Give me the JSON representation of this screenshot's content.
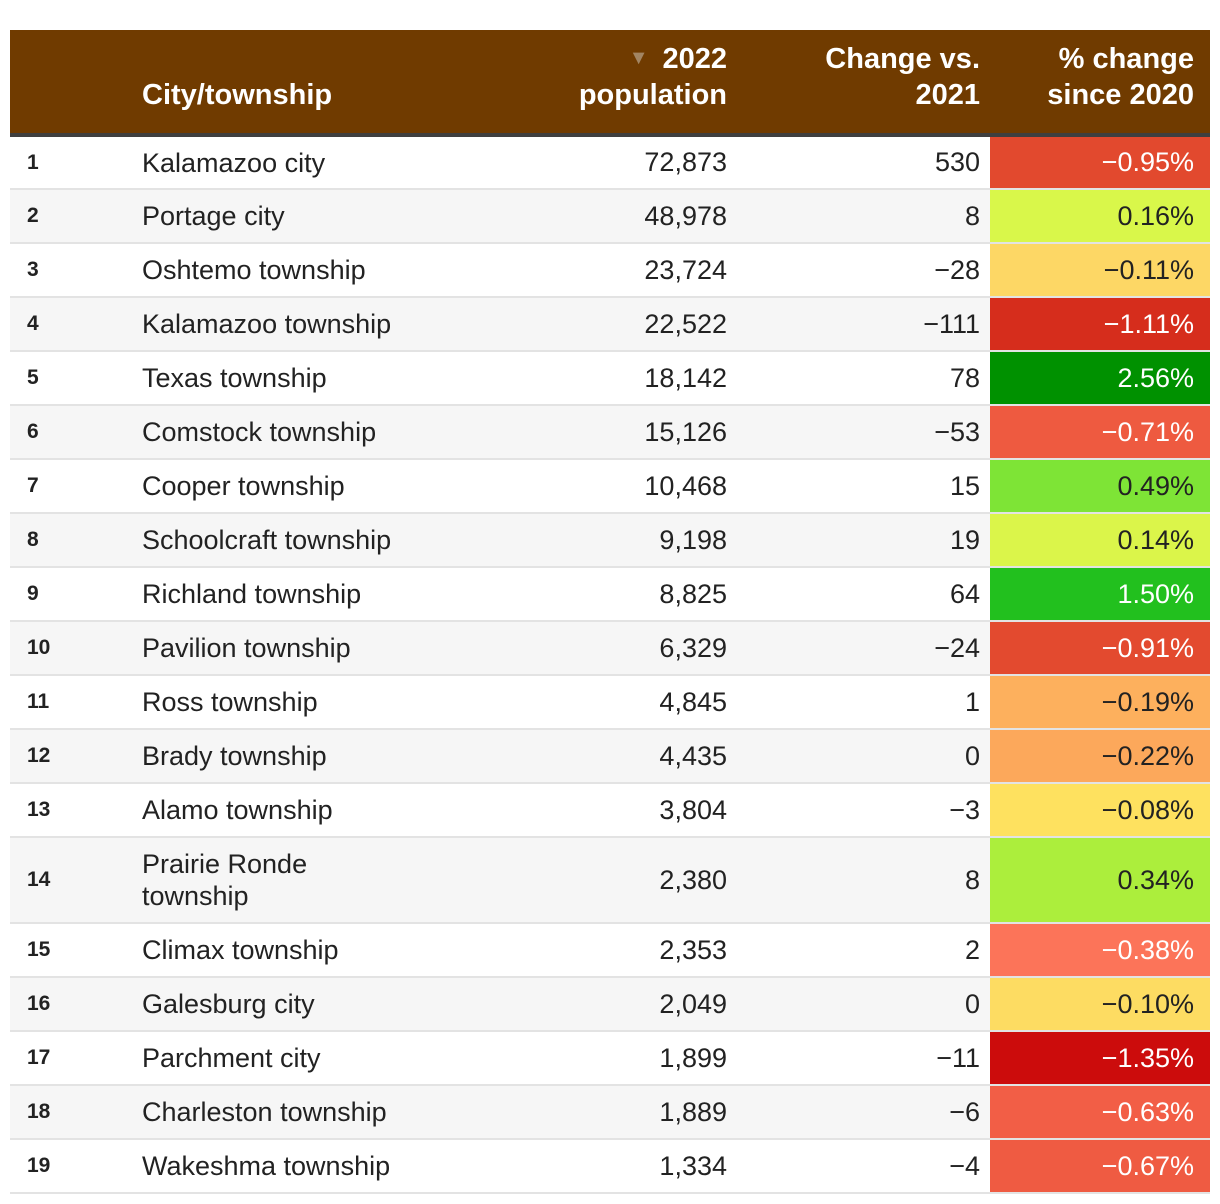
{
  "chart_data": {
    "type": "table",
    "columns": {
      "rank": "",
      "city": "City/township",
      "pop_line1": "2022",
      "pop_line2": "population",
      "chg_line1": "Change vs.",
      "chg_line2": "2021",
      "pct_line1": "% change",
      "pct_line2": "since 2020"
    },
    "sort_indicator": "▼",
    "rows": [
      {
        "rank": "1",
        "city": "Kalamazoo city",
        "pop": "72,873",
        "chg": "530",
        "pct": "−0.95%",
        "bg": "#e2492e",
        "fg": "#ffffff"
      },
      {
        "rank": "2",
        "city": "Portage city",
        "pop": "48,978",
        "chg": "8",
        "pct": "0.16%",
        "bg": "#d9f74a",
        "fg": "#222222"
      },
      {
        "rank": "3",
        "city": "Oshtemo township",
        "pop": "23,724",
        "chg": "−28",
        "pct": "−0.11%",
        "bg": "#fdd765",
        "fg": "#222222"
      },
      {
        "rank": "4",
        "city": "Kalamazoo township",
        "pop": "22,522",
        "chg": "−111",
        "pct": "−1.11%",
        "bg": "#d62d1c",
        "fg": "#ffffff"
      },
      {
        "rank": "5",
        "city": "Texas township",
        "pop": "18,142",
        "chg": "78",
        "pct": "2.56%",
        "bg": "#009100",
        "fg": "#ffffff"
      },
      {
        "rank": "6",
        "city": "Comstock township",
        "pop": "15,126",
        "chg": "−53",
        "pct": "−0.71%",
        "bg": "#ee5a40",
        "fg": "#ffffff"
      },
      {
        "rank": "7",
        "city": "Cooper township",
        "pop": "10,468",
        "chg": "15",
        "pct": "0.49%",
        "bg": "#7ee436",
        "fg": "#222222"
      },
      {
        "rank": "8",
        "city": "Schoolcraft township",
        "pop": "9,198",
        "chg": "19",
        "pct": "0.14%",
        "bg": "#dbf54a",
        "fg": "#222222"
      },
      {
        "rank": "9",
        "city": "Richland township",
        "pop": "8,825",
        "chg": "64",
        "pct": "1.50%",
        "bg": "#22c01e",
        "fg": "#ffffff"
      },
      {
        "rank": "10",
        "city": "Pavilion township",
        "pop": "6,329",
        "chg": "−24",
        "pct": "−0.91%",
        "bg": "#e34a2f",
        "fg": "#ffffff"
      },
      {
        "rank": "11",
        "city": "Ross township",
        "pop": "4,845",
        "chg": "1",
        "pct": "−0.19%",
        "bg": "#fdb05d",
        "fg": "#222222"
      },
      {
        "rank": "12",
        "city": "Brady township",
        "pop": "4,435",
        "chg": "0",
        "pct": "−0.22%",
        "bg": "#fca85b",
        "fg": "#222222"
      },
      {
        "rank": "13",
        "city": "Alamo township",
        "pop": "3,804",
        "chg": "−3",
        "pct": "−0.08%",
        "bg": "#fee15f",
        "fg": "#222222"
      },
      {
        "rank": "14",
        "city": "Prairie Ronde township",
        "pop": "2,380",
        "chg": "8",
        "pct": "0.34%",
        "bg": "#acee3c",
        "fg": "#222222",
        "tall": true
      },
      {
        "rank": "15",
        "city": "Climax township",
        "pop": "2,353",
        "chg": "2",
        "pct": "−0.38%",
        "bg": "#fc7459",
        "fg": "#ffffff"
      },
      {
        "rank": "16",
        "city": "Galesburg city",
        "pop": "2,049",
        "chg": "0",
        "pct": "−0.10%",
        "bg": "#fddc62",
        "fg": "#222222"
      },
      {
        "rank": "17",
        "city": "Parchment city",
        "pop": "1,899",
        "chg": "−11",
        "pct": "−1.35%",
        "bg": "#cc0c0c",
        "fg": "#ffffff"
      },
      {
        "rank": "18",
        "city": "Charleston township",
        "pop": "1,889",
        "chg": "−6",
        "pct": "−0.63%",
        "bg": "#f25e46",
        "fg": "#ffffff"
      },
      {
        "rank": "19",
        "city": "Wakeshma township",
        "pop": "1,334",
        "chg": "−4",
        "pct": "−0.67%",
        "bg": "#ef5b42",
        "fg": "#ffffff"
      }
    ]
  }
}
